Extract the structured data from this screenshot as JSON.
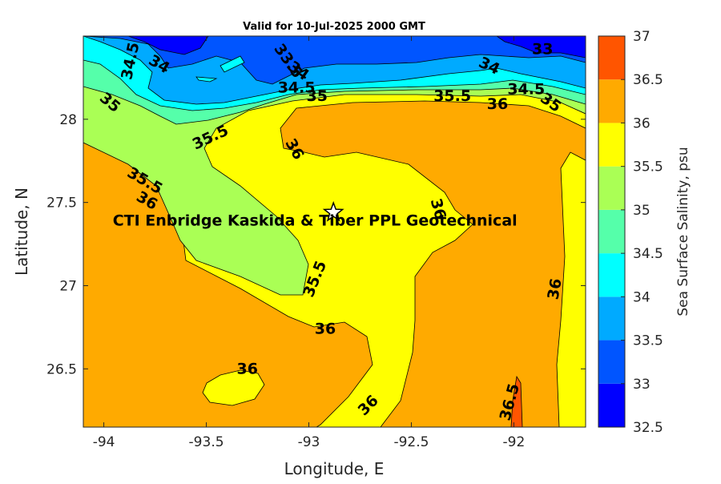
{
  "chart_data": {
    "type": "heatmap",
    "subtype": "filled-contour",
    "title": "Valid for 10-Jul-2025 2000 GMT",
    "xlabel": "Longitude, E",
    "ylabel": "Latitude, N",
    "xlim": [
      -94.1,
      -91.65
    ],
    "ylim": [
      26.15,
      28.5
    ],
    "xticks": [
      -94,
      -93.5,
      -93,
      -92.5,
      -92
    ],
    "xtick_labels": [
      "-94",
      "-93.5",
      "-93",
      "-92.5",
      "-92"
    ],
    "yticks": [
      26.5,
      27,
      27.5,
      28
    ],
    "ytick_labels": [
      "26.5",
      "27",
      "27.5",
      "28"
    ],
    "grid": false,
    "colorbar": {
      "label": "Sea Surface Salinity, psu",
      "levels": [
        32.5,
        33,
        33.5,
        34,
        34.5,
        35,
        35.5,
        36,
        36.5,
        37
      ],
      "tick_labels": [
        "32.5",
        "33",
        "33.5",
        "34",
        "34.5",
        "35",
        "35.5",
        "36",
        "36.5",
        "37"
      ],
      "colors": [
        "#0000ff",
        "#0055ff",
        "#00aaff",
        "#00ffff",
        "#55ffaa",
        "#aaff55",
        "#ffff00",
        "#ffaa00",
        "#ff5500"
      ]
    },
    "contour_labels": [
      {
        "text": "34.5",
        "x": -93.87,
        "y": 28.35,
        "angle": -78
      },
      {
        "text": "34",
        "x": -93.73,
        "y": 28.33,
        "angle": 30
      },
      {
        "text": "35",
        "x": -93.97,
        "y": 28.1,
        "angle": 40
      },
      {
        "text": "33.5",
        "x": -93.1,
        "y": 28.35,
        "angle": 55
      },
      {
        "text": "34",
        "x": -93.05,
        "y": 28.29,
        "angle": 35
      },
      {
        "text": "34.5",
        "x": -93.06,
        "y": 28.19,
        "angle": 0
      },
      {
        "text": "35",
        "x": -92.96,
        "y": 28.14,
        "angle": 0
      },
      {
        "text": "33",
        "x": -91.86,
        "y": 28.42,
        "angle": 0
      },
      {
        "text": "34",
        "x": -92.12,
        "y": 28.32,
        "angle": 25
      },
      {
        "text": "34.5",
        "x": -91.94,
        "y": 28.18,
        "angle": 0
      },
      {
        "text": "35",
        "x": -91.82,
        "y": 28.1,
        "angle": 35
      },
      {
        "text": "35.5",
        "x": -92.3,
        "y": 28.14,
        "angle": 0
      },
      {
        "text": "36",
        "x": -92.08,
        "y": 28.09,
        "angle": 0
      },
      {
        "text": "35.5",
        "x": -93.48,
        "y": 27.89,
        "angle": -25
      },
      {
        "text": "36",
        "x": -93.07,
        "y": 27.82,
        "angle": 60
      },
      {
        "text": "35.5",
        "x": -93.8,
        "y": 27.63,
        "angle": 30
      },
      {
        "text": "36",
        "x": -93.79,
        "y": 27.51,
        "angle": 30
      },
      {
        "text": "36",
        "x": -92.37,
        "y": 27.46,
        "angle": 75
      },
      {
        "text": "35.5",
        "x": -92.97,
        "y": 27.04,
        "angle": -68
      },
      {
        "text": "36",
        "x": -92.92,
        "y": 26.74,
        "angle": 0
      },
      {
        "text": "36",
        "x": -91.8,
        "y": 26.98,
        "angle": -80
      },
      {
        "text": "36",
        "x": -93.3,
        "y": 26.5,
        "angle": 0
      },
      {
        "text": "36",
        "x": -92.71,
        "y": 26.28,
        "angle": -45
      },
      {
        "text": "36.5",
        "x": -92.02,
        "y": 26.3,
        "angle": -75
      }
    ],
    "annotations": [
      {
        "type": "star-marker",
        "x": -92.88,
        "y": 27.44
      },
      {
        "type": "text",
        "text": "CTI Enbridge  Kaskida & Tiber PPL Geotechnical",
        "x": -92.97,
        "y": 27.36
      }
    ]
  }
}
